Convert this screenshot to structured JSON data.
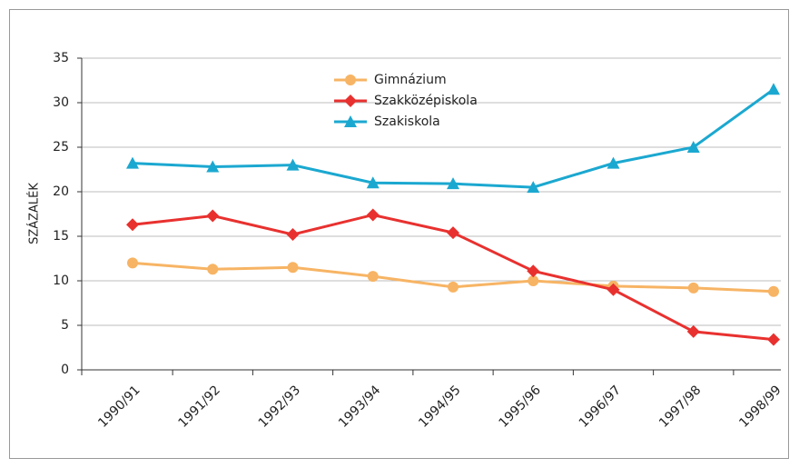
{
  "chart_data": {
    "type": "line",
    "y_label": "SZÁZALÉK",
    "categories": [
      "1990/91",
      "1991/92",
      "1992/93",
      "1993/94",
      "1994/95",
      "1995/96",
      "1996/97",
      "1997/98",
      "1998/99"
    ],
    "series": [
      {
        "name": "Gimnázium",
        "color": "#f7b464",
        "marker": "circle",
        "values": [
          12.0,
          11.3,
          11.5,
          10.5,
          9.3,
          10.0,
          9.4,
          9.2,
          8.8
        ]
      },
      {
        "name": "Szakközépiskola",
        "color": "#e8312f",
        "marker": "diamond",
        "values": [
          16.3,
          17.3,
          15.2,
          17.4,
          15.4,
          11.1,
          9.0,
          4.3,
          3.4
        ]
      },
      {
        "name": "Szakiskola",
        "color": "#1ba8d0",
        "marker": "triangle",
        "values": [
          23.2,
          22.8,
          23.0,
          21.0,
          20.9,
          20.5,
          23.2,
          25.0,
          31.5
        ]
      }
    ],
    "ylim": [
      0,
      35
    ],
    "yticks": [
      0,
      5,
      10,
      15,
      20,
      25,
      30,
      35
    ],
    "grid": true,
    "legend": "top"
  }
}
